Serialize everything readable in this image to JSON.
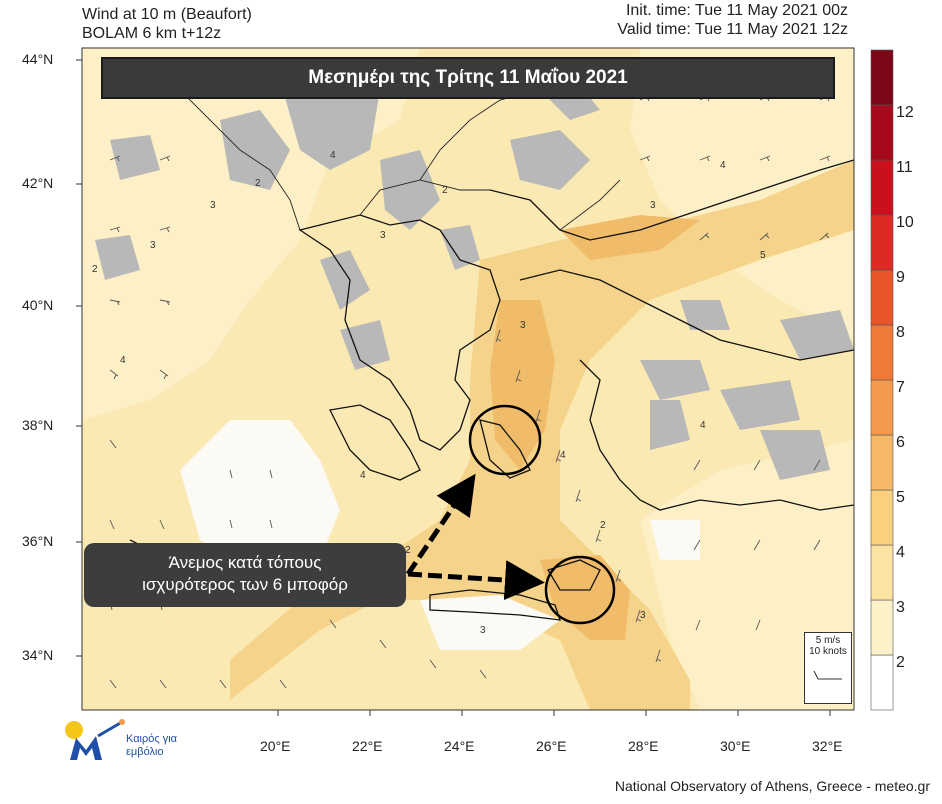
{
  "header": {
    "left_line1": "Wind at 10 m (Beaufort)",
    "left_line2": "BOLAM 6 km t+12z",
    "right_line1": "Init. time: Tue 11 May 2021 00z",
    "right_line2": "Valid time: Tue 11 May 2021 12z"
  },
  "title_banner": "Μεσημέρι της Τρίτης 11 Μαΐου 2021",
  "annotation": {
    "line1": "Άνεμος κατά τόπους",
    "line2": "ισχυρότερος των 6 μποφόρ"
  },
  "reference_vector": {
    "line1": "5 m/s",
    "line2": "10 knots"
  },
  "latitude_labels": [
    "44°N",
    "42°N",
    "40°N",
    "38°N",
    "36°N",
    "34°N"
  ],
  "longitude_labels": [
    "20°E",
    "22°E",
    "24°E",
    "26°E",
    "28°E",
    "30°E",
    "32°E"
  ],
  "colorbar": {
    "labels": [
      "12",
      "11",
      "10",
      "9",
      "8",
      "7",
      "6",
      "5",
      "4",
      "3",
      "2"
    ],
    "colors": [
      "#ffffff",
      "#fdf1c8",
      "#fbe3a2",
      "#f9d07d",
      "#f6b865",
      "#f39a4d",
      "#ef7a36",
      "#e8552a",
      "#dd2a22",
      "#c9101c",
      "#a50a1c",
      "#7e0619"
    ]
  },
  "contour_labels": [
    "2",
    "3",
    "4",
    "3",
    "2",
    "4",
    "3",
    "2",
    "3",
    "4",
    "2",
    "3",
    "4",
    "5",
    "4",
    "3",
    "2",
    "4",
    "3"
  ],
  "footer": "National Observatory of Athens, Greece - meteo.gr",
  "logo_text": {
    "line1": "Καιρός για",
    "line2": "εμβόλιο"
  },
  "colors": {
    "land_gray": "#b8b8b8",
    "sea_base": "#fbe9b4",
    "banner_bg": "#3a3a3a",
    "strong_wind": "#f0bc6a"
  }
}
